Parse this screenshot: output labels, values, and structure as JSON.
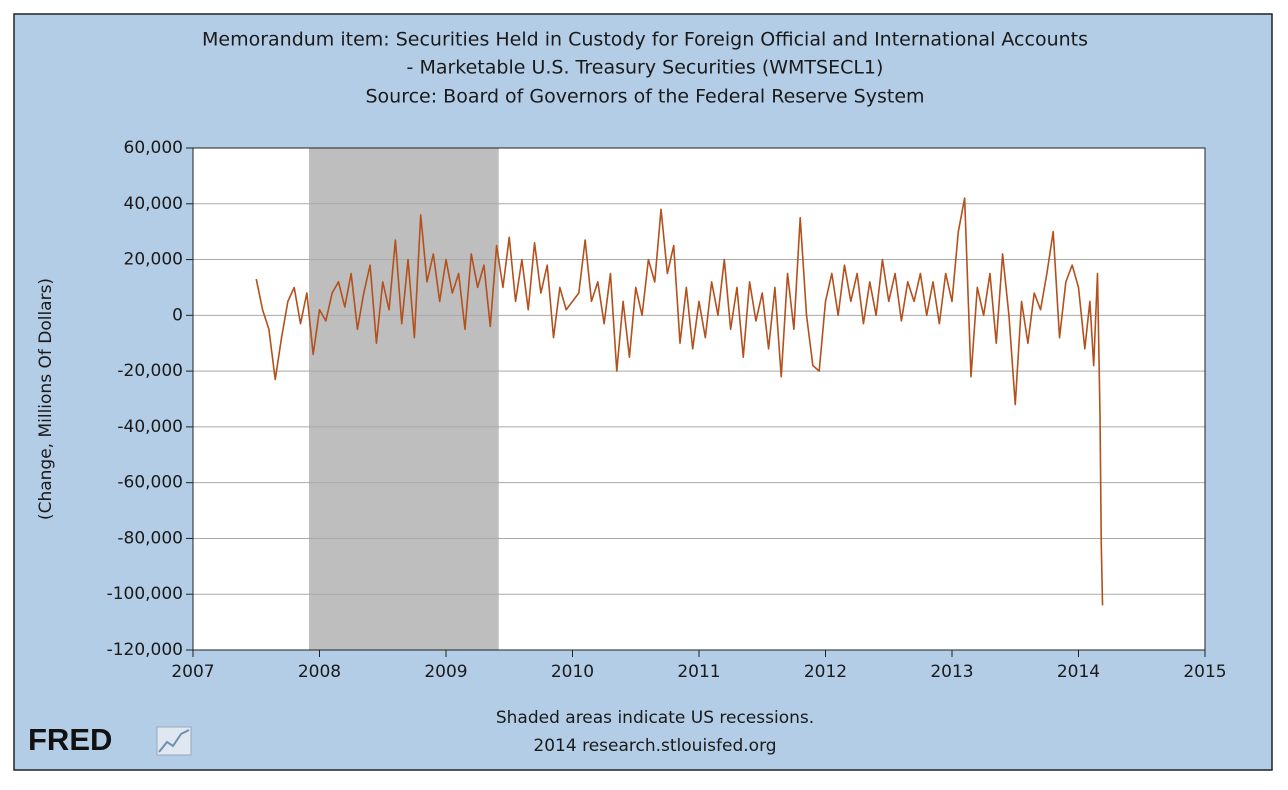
{
  "chart_data": {
    "type": "line",
    "title": [
      "Memorandum item: Securities Held in Custody for Foreign Official and International Accounts",
      "- Marketable U.S. Treasury Securities (WMTSECL1)",
      "Source: Board of Governors of the Federal Reserve System"
    ],
    "y_label": "(Change, Millions Of Dollars)",
    "notes": [
      "Shaded areas indicate US recessions.",
      "2014 research.stlouisfed.org"
    ],
    "logo": "FRED",
    "recessions": [
      [
        2007.917,
        2009.417
      ]
    ],
    "recession_color": "#bebebe",
    "background": "#b3cde6",
    "grid": true,
    "xlim": [
      2007,
      2015
    ],
    "xticks": [
      2007,
      2008,
      2009,
      2010,
      2011,
      2012,
      2013,
      2014,
      2015
    ],
    "ylim": [
      -120000,
      60000
    ],
    "yticks": [
      {
        "value": -120000,
        "label": "-120,000"
      },
      {
        "value": -100000,
        "label": "-100,000"
      },
      {
        "value": -80000,
        "label": "-80,000"
      },
      {
        "value": -60000,
        "label": "-60,000"
      },
      {
        "value": -40000,
        "label": "-40,000"
      },
      {
        "value": -20000,
        "label": "-20,000"
      },
      0,
      {
        "value": 20000,
        "label": "20,000"
      },
      {
        "value": 40000,
        "label": "40,000"
      },
      {
        "value": 60000,
        "label": "60,000"
      }
    ],
    "x": [
      2007.5,
      2007.55,
      2007.6,
      2007.65,
      2007.7,
      2007.75,
      2007.8,
      2007.85,
      2007.9,
      2007.95,
      2008.0,
      2008.05,
      2008.1,
      2008.15,
      2008.2,
      2008.25,
      2008.3,
      2008.35,
      2008.4,
      2008.45,
      2008.5,
      2008.55,
      2008.6,
      2008.65,
      2008.7,
      2008.75,
      2008.8,
      2008.85,
      2008.9,
      2008.95,
      2009.0,
      2009.05,
      2009.1,
      2009.15,
      2009.2,
      2009.25,
      2009.3,
      2009.35,
      2009.4,
      2009.45,
      2009.5,
      2009.55,
      2009.6,
      2009.65,
      2009.7,
      2009.75,
      2009.8,
      2009.85,
      2009.9,
      2009.95,
      2010.0,
      2010.05,
      2010.1,
      2010.15,
      2010.2,
      2010.25,
      2010.3,
      2010.35,
      2010.4,
      2010.45,
      2010.5,
      2010.55,
      2010.6,
      2010.65,
      2010.7,
      2010.75,
      2010.8,
      2010.85,
      2010.9,
      2010.95,
      2011.0,
      2011.05,
      2011.1,
      2011.15,
      2011.2,
      2011.25,
      2011.3,
      2011.35,
      2011.4,
      2011.45,
      2011.5,
      2011.55,
      2011.6,
      2011.65,
      2011.7,
      2011.75,
      2011.8,
      2011.85,
      2011.9,
      2011.95,
      2012.0,
      2012.05,
      2012.1,
      2012.15,
      2012.2,
      2012.25,
      2012.3,
      2012.35,
      2012.4,
      2012.45,
      2012.5,
      2012.55,
      2012.6,
      2012.65,
      2012.7,
      2012.75,
      2012.8,
      2012.85,
      2012.9,
      2012.95,
      2013.0,
      2013.05,
      2013.1,
      2013.15,
      2013.2,
      2013.25,
      2013.3,
      2013.35,
      2013.4,
      2013.45,
      2013.5,
      2013.55,
      2013.6,
      2013.65,
      2013.7,
      2013.75,
      2013.8,
      2013.85,
      2013.9,
      2013.95,
      2014.0,
      2014.05,
      2014.09,
      2014.12,
      2014.15,
      2014.17,
      2014.18,
      2014.19
    ],
    "series": [
      {
        "name": "WMTSECL1",
        "color": "#b4501c",
        "values": [
          13000,
          2000,
          -5000,
          -23000,
          -8000,
          5000,
          10000,
          -3000,
          8000,
          -14000,
          2000,
          -2000,
          8000,
          12000,
          3000,
          15000,
          -5000,
          8000,
          18000,
          -10000,
          12000,
          2000,
          27000,
          -3000,
          20000,
          -8000,
          36000,
          12000,
          22000,
          5000,
          20000,
          8000,
          15000,
          -5000,
          22000,
          10000,
          18000,
          -4000,
          25000,
          10000,
          28000,
          5000,
          20000,
          2000,
          26000,
          8000,
          18000,
          -8000,
          10000,
          2000,
          5000,
          8000,
          27000,
          5000,
          12000,
          -3000,
          15000,
          -20000,
          5000,
          -15000,
          10000,
          0,
          20000,
          12000,
          38000,
          15000,
          25000,
          -10000,
          10000,
          -12000,
          5000,
          -8000,
          12000,
          0,
          20000,
          -5000,
          10000,
          -15000,
          12000,
          -2000,
          8000,
          -12000,
          10000,
          -22000,
          15000,
          -5000,
          35000,
          0,
          -18000,
          -20000,
          5000,
          15000,
          0,
          18000,
          5000,
          15000,
          -3000,
          12000,
          0,
          20000,
          5000,
          15000,
          -2000,
          12000,
          5000,
          15000,
          0,
          12000,
          -3000,
          15000,
          5000,
          30000,
          42000,
          -22000,
          10000,
          0,
          15000,
          -10000,
          22000,
          0,
          -32000,
          5000,
          -10000,
          8000,
          2000,
          15000,
          30000,
          -8000,
          12000,
          18000,
          10000,
          -12000,
          5000,
          -18000,
          15000,
          -36000,
          -82000,
          -104000
        ]
      }
    ]
  }
}
